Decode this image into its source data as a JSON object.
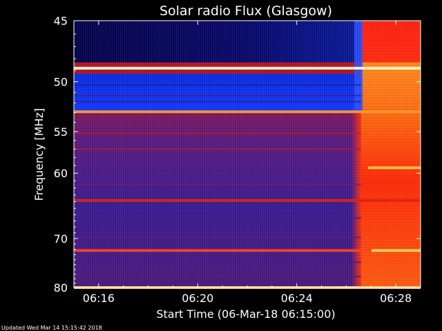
{
  "chart_data": {
    "type": "heatmap",
    "title": "Solar radio Flux (Glasgow)",
    "xlabel": "Start Time (06-Mar-18 06:15:00)",
    "ylabel": "Frequency [MHz]",
    "x_ticks": [
      "06:16",
      "06:20",
      "06:24",
      "06:28"
    ],
    "x_tick_minutes": [
      16,
      20,
      24,
      28
    ],
    "xlim_minutes": [
      15.0,
      29.0
    ],
    "y_ticks": [
      45,
      50,
      55,
      60,
      70,
      80
    ],
    "ylim": [
      80,
      45
    ],
    "y_scale": "reciprocal",
    "colors": {
      "quiet": "#30157c",
      "low": "#0a0a50",
      "mid": "#ff2010",
      "high": "#ff8c1a",
      "peak": "#ffee60"
    },
    "bright_lines_mhz": [
      48.8,
      52.9,
      63.8,
      72.2,
      80.0
    ],
    "transition_minute": 26.6
  },
  "footer": {
    "updated": "Updated Wed Mar 14 15:15:42 2018"
  }
}
